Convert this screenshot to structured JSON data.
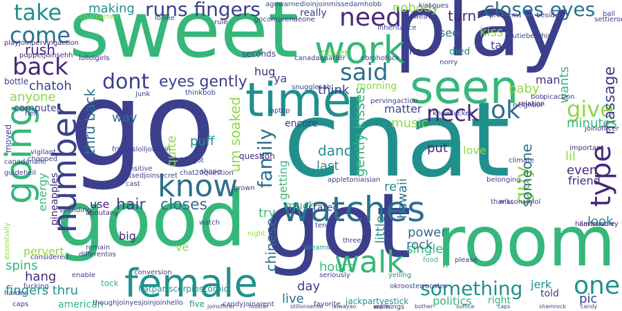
{
  "palette": {
    "dark_blue": "#3b3f8c",
    "blue": "#2c6f8e",
    "teal": "#21908d",
    "green": "#35b779",
    "light_green": "#8fd744",
    "purple": "#46287a",
    "dark_purple": "#440154"
  },
  "words": {
    "go": "go",
    "chat": "chat",
    "sweet": "sweet",
    "play": "play",
    "good": "good",
    "got": "got",
    "room": "room",
    "time": "time",
    "seen": "seen",
    "female": "female",
    "going": "going",
    "number": "number",
    "watches": "watches",
    "walk": "walk",
    "know": "know",
    "work": "work",
    "need": "need",
    "back": "back",
    "come": "come",
    "take": "take",
    "runs_fingers": "runs fingers",
    "closes_eyes": "closes eyes",
    "one": "one",
    "said": "said",
    "neck": "neck",
    "ok": "ok",
    "give": "give",
    "type": "type",
    "guy": "guy",
    "family": "family",
    "something": "something",
    "dont": "dont",
    "eyes_gently": "eyes gently",
    "hair": "hair",
    "closes": "closes",
    "rush": "rush",
    "making": "making",
    "nobody": "nobody",
    "turn": "turn",
    "kiss": "kiss",
    "see": "see",
    "ta": "ta",
    "died": "died",
    "ho": "ho",
    "hug": "hug",
    "ya": "ya",
    "think": "think",
    "chatoh": "chatoh",
    "anyone": "anyone",
    "computer": "computer",
    "thru_back": "thru back",
    "way": "way",
    "quite": "quite",
    "puff": "puff",
    "um_soaked": "um soaked",
    "chinese": "chinese",
    "gently_kisses": "gently kisses",
    "matter": "matter",
    "music": "music",
    "dance": "dance",
    "last": "last",
    "put": "put",
    "love": "love",
    "someone": "someone",
    "lil": "lil",
    "even": "even",
    "friend": "friend",
    "look": "look",
    "massage": "massage",
    "minutes": "minutes",
    "man": "man",
    "wants": "wants",
    "baby": "baby",
    "energy": "energy",
    "pineapples": "pineapples",
    "use": "use",
    "big": "big",
    "pervert": "pervert",
    "spins": "spins",
    "hang": "hang",
    "fingers_thru": "fingers thru",
    "american": "american",
    "hours": "hours",
    "single": "single",
    "power": "power",
    "rock": "rock",
    "little": "little",
    "live": "live",
    "day": "day",
    "ll": "ll",
    "politics": "politics",
    "right": "right",
    "pic": "pic",
    "jerk": "jerk",
    "told": "told",
    "re": "re",
    "hawaii": "hawaii",
    "getting": "getting",
    "much": "much",
    "stated": "stated",
    "try": "try",
    "ve": "ve",
    "never": "never",
    "really": "really",
    "morning": "morning",
    "encore": "encore",
    "question": "question",
    "seconds": "seconds",
    "bottle": "bottle",
    "moved": "moved",
    "five": "five",
    "caps": "caps",
    "harder": "harder",
    "tock": "tock",
    "three": "three",
    "dreams": "dreams",
    "seriously": "seriously",
    "yelling": "yelling",
    "food": "food",
    "please": "please",
    "thanks": "thanks",
    "important": "important",
    "ball": "ball",
    "hell": "hell",
    "laptop": "laptop",
    "shape": "shape",
    "junk": "junk",
    "rule": "rule",
    "chatparten": "chatparten",
    "lollike": "lollike",
    "chat20question": "chat20question",
    "candyjoinarent": "candyjoinarent",
    "jackpartyestick": "jackpartyestick",
    "hatpartscorpioscorpio": "hatpartscorpioscorpio",
    "thoughjoinyesjoinjoinhello": "thoughjoinyesjoinjoinhello",
    "canadaquarter": "canadaquarter",
    "inheritance": "inheritance",
    "problems": "problems",
    "besides": "besides",
    "friendslolljoinjoin": "friendslolljoinjoin",
    "joinofficer": "joinofficer",
    "hilariousorry": "hilariousorry",
    "okroosterrooster": "okroosterrooster",
    "climate": "climate",
    "joinofficer2": "joinofficer",
    "wisconsinlol": "wisconsinlol",
    "rooster": "rooster",
    "favorite": "favorite",
    "tense": "tense",
    "considered": "considered",
    "essentially": "essentially",
    "guideheil": "guideheil",
    "vigilant": "vigilant",
    "chopped": "chopped",
    "spending": "spending",
    "stillonsense": "stillonsense",
    "abouta": "aboutany",
    "sensitive": "sensitive",
    "pissed": "pissedjoinsecret",
    "cast": "cast",
    "foolgot": "foolgot",
    "grown": "grown",
    "night": "night",
    "watch": "watch",
    "laiwayao": "laiwayao",
    "xeetie": "xeetie",
    "pervingaction": "pervingaction",
    "knowfucker": "knowfucker",
    "belonging": "belonging",
    "bother": "bother",
    "neighbor": "neighbor",
    "relation": "relation",
    "bob": "bob",
    "pizaction": "picaction",
    "snugglesah": "snugglesah",
    "obrohofuck": "obrohofuck",
    "norry": "norry",
    "suffice": "suffice",
    "cutlebeerhiya": "cutiebeerhiya",
    "weave": "weave",
    "kissgues": "kissgues",
    "settie": "settieroomaction",
    "agowarned": "agowarnedioinjoinmissedamhobb",
    "gocomprendeone": "gocomprendeone",
    "playjoinperving": "playjoinpervingaction",
    "puppet": "puppetjoinsehh",
    "lollolgirls": "loliolgirls",
    "canadanahc": "canadanahc",
    "remain": "remain",
    "differentos": "differentos",
    "enable": "enable",
    "conversion": "conversion",
    "fucking": "fucking",
    "caps2": "caps",
    "thinkbob": "thinkbob",
    "shamrock": "shamrock",
    "candy": "candy",
    "amtrouble": "amtrouble",
    "warnings": "warnings",
    "appletonia": "appletoniaisian"
  }
}
